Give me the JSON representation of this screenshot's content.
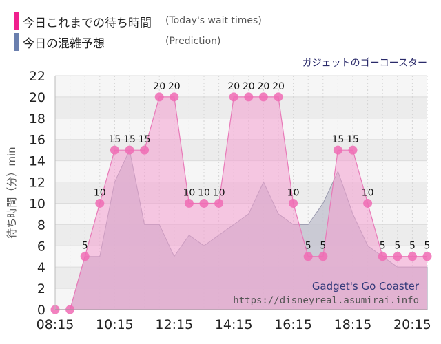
{
  "legend": {
    "today_label": "今日これまでの待ち時間",
    "today_sub": "(Today's wait times)",
    "prediction_label": "今日の混雑予想",
    "prediction_sub": "(Prediction)"
  },
  "attraction_name_ja": "ガジェットのゴーコースター",
  "watermark": {
    "name_en": "Gadget's Go Coaster",
    "url": "https://disneyreal.asumirai.info"
  },
  "colors": {
    "today": "#f24aa6",
    "today_fill": "#f7b6dc",
    "prediction": "#6a7fae",
    "prediction_fill": "#c4c4d0"
  },
  "chart_data": {
    "type": "area",
    "ylabel": "待ち時間（分）min",
    "ylim": [
      0,
      22
    ],
    "yticks": [
      0,
      2,
      4,
      6,
      8,
      10,
      12,
      14,
      16,
      18,
      20,
      22
    ],
    "xlim": [
      "08:15",
      "20:45"
    ],
    "xticks": [
      "08:15",
      "10:15",
      "12:15",
      "14:15",
      "16:15",
      "18:15",
      "20:15"
    ],
    "grid": true,
    "series": [
      {
        "name": "今日これまでの待ち時間",
        "kind": "line_markers",
        "points": [
          [
            "08:15",
            0
          ],
          [
            "08:45",
            0
          ],
          [
            "09:15",
            5
          ],
          [
            "09:45",
            10
          ],
          [
            "10:15",
            15
          ],
          [
            "10:45",
            15
          ],
          [
            "11:15",
            15
          ],
          [
            "11:45",
            20
          ],
          [
            "12:15",
            20
          ],
          [
            "12:45",
            10
          ],
          [
            "13:15",
            10
          ],
          [
            "13:45",
            10
          ],
          [
            "14:15",
            20
          ],
          [
            "14:45",
            20
          ],
          [
            "15:15",
            20
          ],
          [
            "15:45",
            20
          ],
          [
            "16:15",
            10
          ],
          [
            "16:45",
            5
          ],
          [
            "17:15",
            5
          ],
          [
            "17:45",
            15
          ],
          [
            "18:15",
            15
          ],
          [
            "18:45",
            10
          ],
          [
            "19:15",
            5
          ],
          [
            "19:45",
            5
          ],
          [
            "20:15",
            5
          ],
          [
            "20:45",
            5
          ]
        ]
      },
      {
        "name": "今日の混雑予想",
        "kind": "area",
        "points": [
          [
            "08:15",
            0
          ],
          [
            "08:45",
            0
          ],
          [
            "09:15",
            5
          ],
          [
            "09:45",
            5
          ],
          [
            "10:15",
            12
          ],
          [
            "10:45",
            15
          ],
          [
            "11:15",
            8
          ],
          [
            "11:45",
            8
          ],
          [
            "12:15",
            5
          ],
          [
            "12:45",
            7
          ],
          [
            "13:15",
            6
          ],
          [
            "13:45",
            7
          ],
          [
            "14:15",
            8
          ],
          [
            "14:45",
            9
          ],
          [
            "15:15",
            12
          ],
          [
            "15:45",
            9
          ],
          [
            "16:15",
            8
          ],
          [
            "16:45",
            8
          ],
          [
            "17:15",
            10
          ],
          [
            "17:45",
            13
          ],
          [
            "18:15",
            9
          ],
          [
            "18:45",
            6
          ],
          [
            "19:15",
            5
          ],
          [
            "19:45",
            4
          ],
          [
            "20:15",
            4
          ],
          [
            "20:45",
            4
          ]
        ]
      }
    ]
  }
}
